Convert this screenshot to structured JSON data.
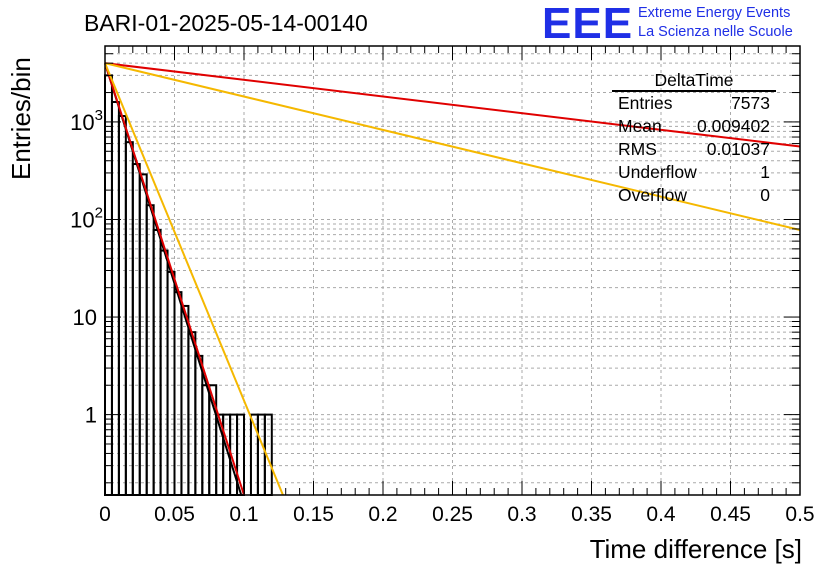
{
  "header": {
    "title": "BARI-01-2025-05-14-00140",
    "logo_text": "EEE",
    "brand_line1": "Extreme Energy Events",
    "brand_line2": "La Scienza nelle Scuole"
  },
  "stats_box": {
    "title": "DeltaTime",
    "rows": [
      {
        "label": "Entries",
        "value": "7573"
      },
      {
        "label": "Mean",
        "value": "0.009402"
      },
      {
        "label": "RMS",
        "value": "0.01037"
      },
      {
        "label": "Underflow",
        "value": "1"
      },
      {
        "label": "Overflow",
        "value": "0"
      }
    ]
  },
  "chart_data": {
    "type": "bar",
    "title": "BARI-01-2025-05-14-00140",
    "xlabel": "Time difference [s]",
    "ylabel": "Entries/bin",
    "xlim": [
      0,
      0.5
    ],
    "ylim": [
      0.15,
      6000
    ],
    "yscale": "log",
    "grid": true,
    "x_ticks": [
      0,
      0.05,
      0.1,
      0.15,
      0.2,
      0.25,
      0.3,
      0.35,
      0.4,
      0.45,
      0.5
    ],
    "x_tick_labels": [
      "0",
      "0.05",
      "0.1",
      "0.15",
      "0.2",
      "0.25",
      "0.3",
      "0.35",
      "0.4",
      "0.45",
      "0.5"
    ],
    "y_ticks": [
      1,
      10,
      100,
      1000
    ],
    "y_tick_labels": [
      {
        "base": "1",
        "exp": ""
      },
      {
        "base": "10",
        "exp": ""
      },
      {
        "base": "10",
        "exp": "2"
      },
      {
        "base": "10",
        "exp": "3"
      }
    ],
    "histogram": {
      "bin_width": 0.005,
      "bin_start": 0,
      "counts": [
        3000,
        1600,
        1150,
        620,
        370,
        290,
        140,
        78,
        48,
        29,
        18,
        13,
        7,
        4,
        2,
        2,
        1,
        1,
        1,
        1,
        0,
        1,
        1,
        1,
        0
      ]
    },
    "series": [
      {
        "name": "fit-black",
        "color": "#000000",
        "points": [
          [
            0,
            4000
          ],
          [
            0.098,
            0.15
          ]
        ]
      },
      {
        "name": "fit-red-steep",
        "color": "#e00000",
        "points": [
          [
            0,
            4000
          ],
          [
            0.1,
            0.15
          ]
        ]
      },
      {
        "name": "fit-orange-steep",
        "color": "#f5b800",
        "points": [
          [
            0,
            4000
          ],
          [
            0.128,
            0.15
          ]
        ]
      },
      {
        "name": "fit-red-flat",
        "color": "#e00000",
        "points": [
          [
            0,
            4000
          ],
          [
            0.5,
            560
          ]
        ]
      },
      {
        "name": "fit-orange-flat",
        "color": "#f5b800",
        "points": [
          [
            0,
            4000
          ],
          [
            0.5,
            78
          ]
        ]
      }
    ]
  }
}
